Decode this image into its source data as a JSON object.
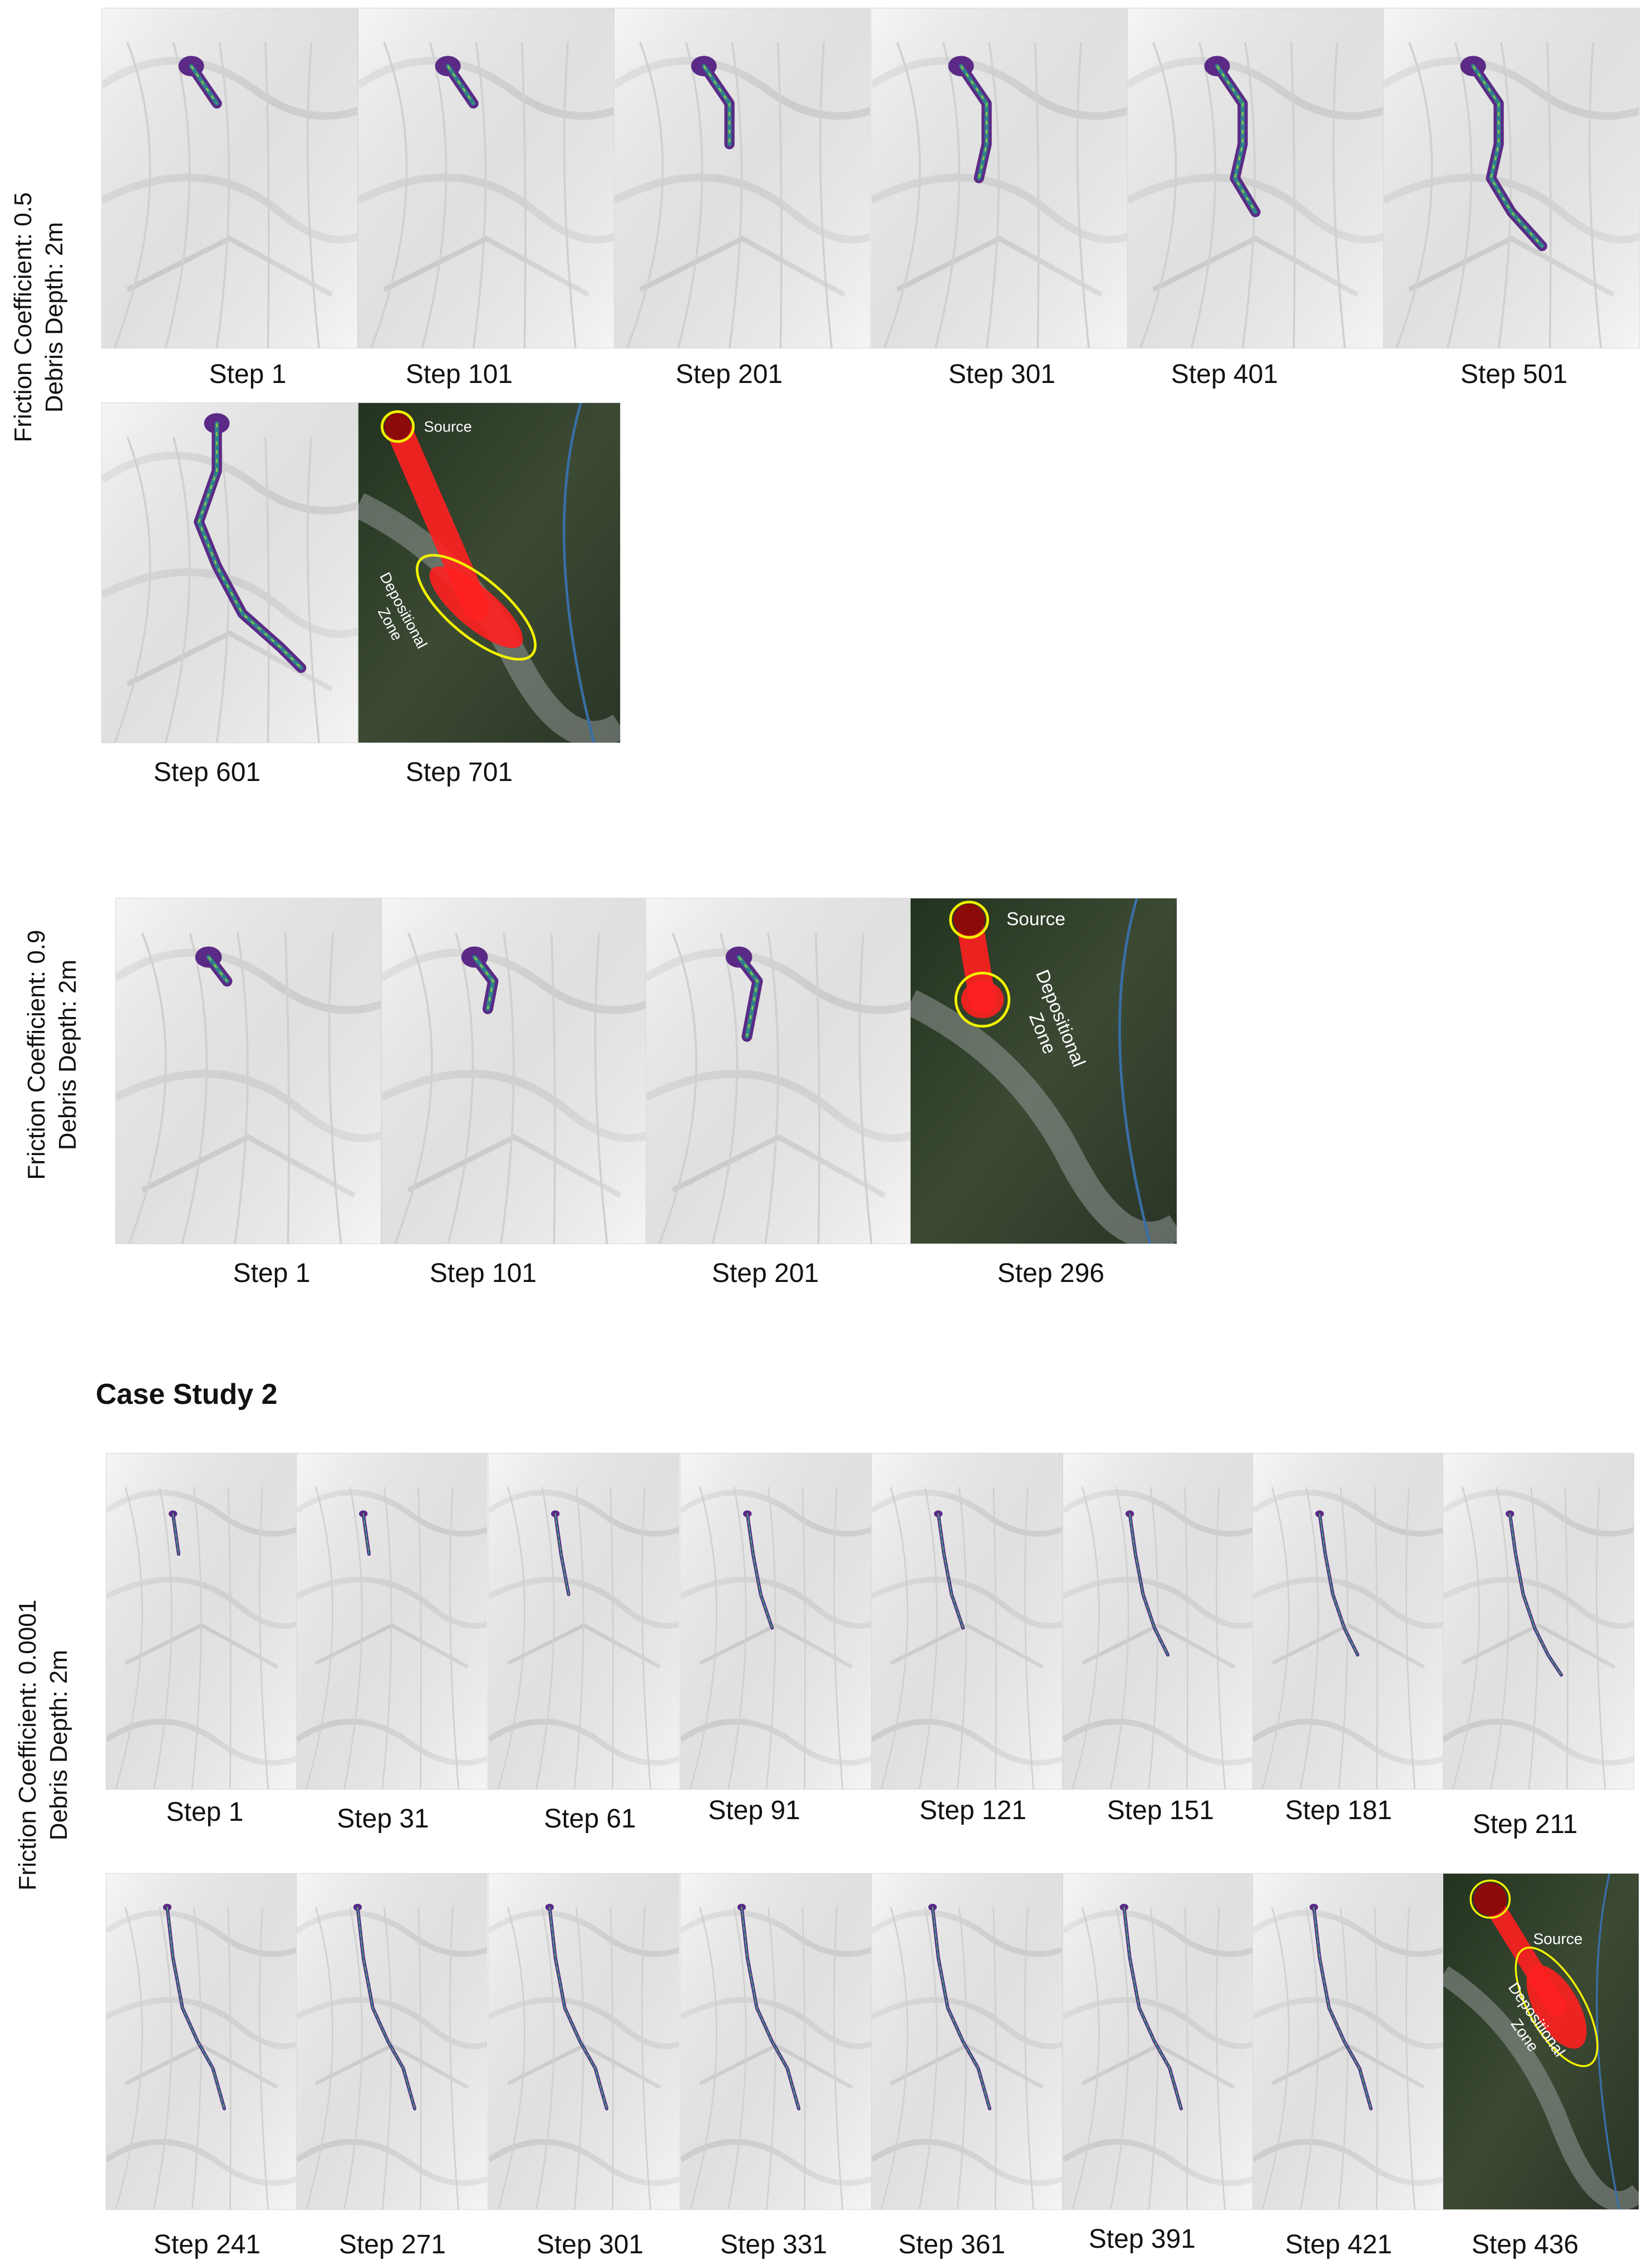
{
  "groups": [
    {
      "side_line1": "Friction Coefficient: 0.5",
      "side_line2": "Debris Depth: 2m"
    },
    {
      "side_line1": "Friction Coefficient: 0.9",
      "side_line2": "Debris Depth: 2m"
    },
    {
      "side_line1": "Friction Coefficient: 0.0001",
      "side_line2": "Debris Depth: 2m"
    }
  ],
  "case_study_2_heading": "Case Study 2",
  "captions": {
    "g1": [
      "Step 1",
      "Step 101",
      "Step 201",
      "Step 301",
      "Step 401",
      "Step 501",
      "Step 601",
      "Step 701"
    ],
    "g2": [
      "Step 1",
      "Step 101",
      "Step 201",
      "Step 296"
    ],
    "g3": [
      "Step 1",
      "Step 31",
      "Step 61",
      "Step 91",
      "Step 121",
      "Step 151",
      "Step 181",
      "Step 211",
      "Step 241",
      "Step 271",
      "Step 301",
      "Step 331",
      "Step 361",
      "Step 391",
      "Step 421",
      "Step 436"
    ]
  },
  "annotations": {
    "source": "Source",
    "depositional": "Depositional",
    "zone": "Zone"
  },
  "colors": {
    "hillshade": "#e9e9e9",
    "flow_purple": "#5b2a86",
    "flow_teal": "#2a8c8c",
    "flow_green": "#9ad13a",
    "deposit_red": "#ff2020",
    "ellipse_yellow": "#f2f200",
    "satellite": "#2f3f2a"
  }
}
